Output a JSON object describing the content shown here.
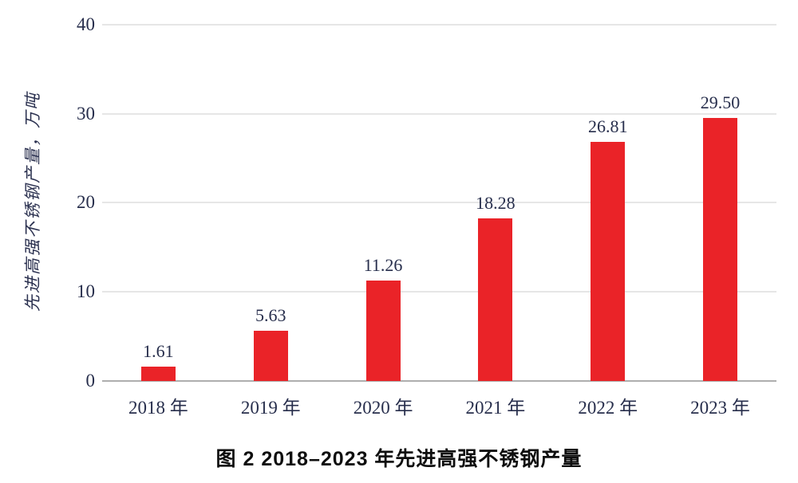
{
  "chart_data": {
    "type": "bar",
    "title": "图 2  2018–2023 年先进高强不锈钢产量",
    "ylabel": "先进高强不锈钢产量，万吨",
    "xlabel": "",
    "categories": [
      "2018 年",
      "2019 年",
      "2020 年",
      "2021 年",
      "2022 年",
      "2023 年"
    ],
    "values": [
      1.61,
      5.63,
      11.26,
      18.28,
      26.81,
      29.5
    ],
    "value_labels": [
      "1.61",
      "5.63",
      "11.26",
      "18.28",
      "26.81",
      "29.50"
    ],
    "ytick_labels": [
      "0",
      "10",
      "20",
      "30",
      "40"
    ],
    "ylim": [
      0,
      40
    ],
    "grid": true,
    "legend": "none",
    "bar_color": "#ea2328",
    "gridline_color": "#e6e6e6",
    "baseline_color": "#aeaeae",
    "text_color": "#272e4c",
    "caption_color": "#0e0e0e"
  }
}
